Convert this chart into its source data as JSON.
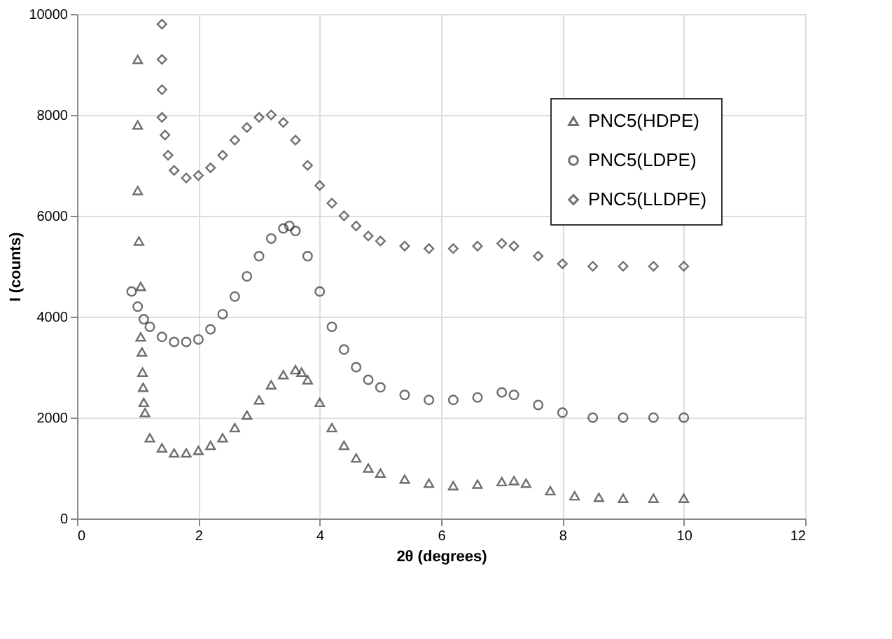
{
  "chart_data": {
    "type": "scatter",
    "xlabel": "2θ (degrees)",
    "ylabel": "I (counts)",
    "xlim": [
      0,
      12
    ],
    "ylim": [
      0,
      10000
    ],
    "xticks": [
      0,
      2,
      4,
      6,
      8,
      10,
      12
    ],
    "yticks": [
      0,
      2000,
      4000,
      6000,
      8000,
      10000
    ],
    "grid": true,
    "legend": "top right",
    "series": [
      {
        "name": "PNC5(HDPE)",
        "color": "#333333",
        "marker": "triangle",
        "x": [
          1.0,
          1.0,
          1.0,
          1.02,
          1.05,
          1.05,
          1.07,
          1.08,
          1.09,
          1.1,
          1.12,
          1.2,
          1.4,
          1.6,
          1.8,
          2.0,
          2.2,
          2.4,
          2.6,
          2.8,
          3.0,
          3.2,
          3.4,
          3.6,
          3.7,
          3.8,
          4.0,
          4.2,
          4.4,
          4.6,
          4.8,
          5.0,
          5.4,
          5.8,
          6.2,
          6.6,
          7.0,
          7.2,
          7.4,
          7.8,
          8.2,
          8.6,
          9.0,
          9.5,
          10.0
        ],
        "values": [
          9100,
          7800,
          6500,
          5500,
          4600,
          3600,
          3300,
          2900,
          2600,
          2300,
          2100,
          1600,
          1400,
          1300,
          1300,
          1350,
          1450,
          1600,
          1800,
          2050,
          2350,
          2650,
          2850,
          2950,
          2900,
          2750,
          2300,
          1800,
          1450,
          1200,
          1000,
          900,
          780,
          700,
          650,
          680,
          730,
          750,
          700,
          550,
          450,
          420,
          400,
          400,
          400
        ]
      },
      {
        "name": "PNC5(LDPE)",
        "color": "#333333",
        "marker": "circle",
        "x": [
          0.9,
          1.0,
          1.1,
          1.2,
          1.4,
          1.6,
          1.8,
          2.0,
          2.2,
          2.4,
          2.6,
          2.8,
          3.0,
          3.2,
          3.4,
          3.5,
          3.6,
          3.8,
          4.0,
          4.2,
          4.4,
          4.6,
          4.8,
          5.0,
          5.4,
          5.8,
          6.2,
          6.6,
          7.0,
          7.2,
          7.6,
          8.0,
          8.5,
          9.0,
          9.5,
          10.0
        ],
        "values": [
          4500,
          4200,
          3950,
          3800,
          3600,
          3500,
          3500,
          3550,
          3750,
          4050,
          4400,
          4800,
          5200,
          5550,
          5750,
          5800,
          5700,
          5200,
          4500,
          3800,
          3350,
          3000,
          2750,
          2600,
          2450,
          2350,
          2350,
          2400,
          2500,
          2450,
          2250,
          2100,
          2000,
          2000,
          2000,
          2000
        ]
      },
      {
        "name": "PNC5(LLDPE)",
        "color": "#333333",
        "marker": "diamond",
        "x": [
          1.4,
          1.4,
          1.4,
          1.4,
          1.45,
          1.5,
          1.6,
          1.8,
          2.0,
          2.2,
          2.4,
          2.6,
          2.8,
          3.0,
          3.2,
          3.4,
          3.6,
          3.8,
          4.0,
          4.2,
          4.4,
          4.6,
          4.8,
          5.0,
          5.4,
          5.8,
          6.2,
          6.6,
          7.0,
          7.2,
          7.6,
          8.0,
          8.5,
          9.0,
          9.5,
          10.0
        ],
        "values": [
          9800,
          9100,
          8500,
          7950,
          7600,
          7200,
          6900,
          6750,
          6800,
          6950,
          7200,
          7500,
          7750,
          7950,
          8000,
          7850,
          7500,
          7000,
          6600,
          6250,
          6000,
          5800,
          5600,
          5500,
          5400,
          5350,
          5350,
          5400,
          5450,
          5400,
          5200,
          5050,
          5000,
          5000,
          5000,
          5000
        ]
      }
    ]
  }
}
